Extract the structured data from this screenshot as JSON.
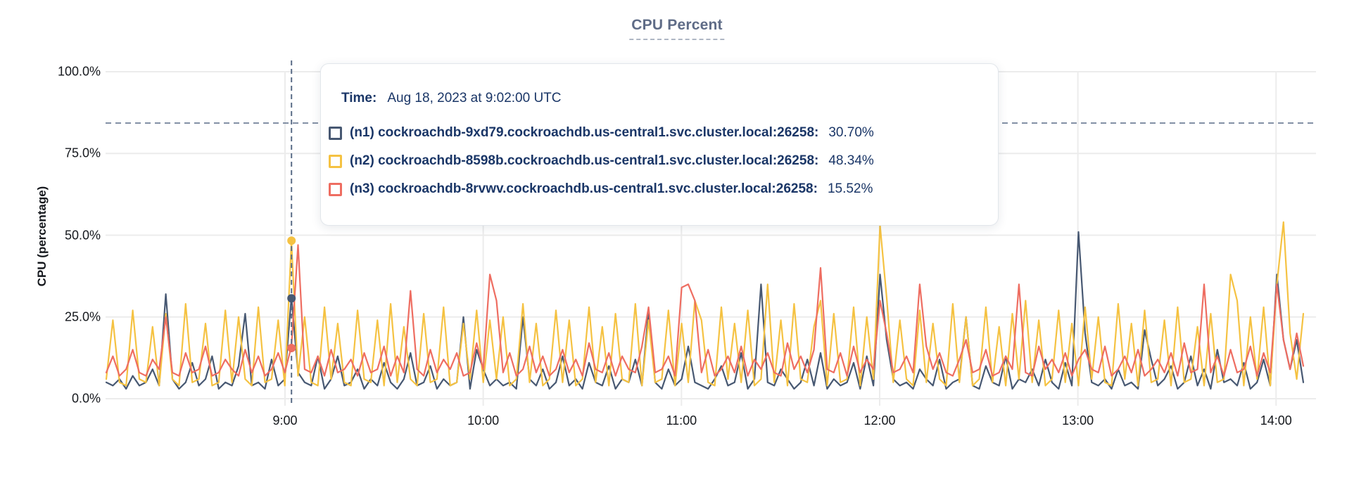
{
  "title": "CPU Percent",
  "tooltip": {
    "time_label": "Time:",
    "time_value": "Aug 18, 2023 at 9:02:00 UTC",
    "rows": [
      {
        "label": "(n1) cockroachdb-9xd79.cockroachdb.us-central1.svc.cluster.local:26258:",
        "value": "30.70%",
        "color": "#475872"
      },
      {
        "label": "(n2) cockroachdb-8598b.cockroachdb.us-central1.svc.cluster.local:26258:",
        "value": "48.34%",
        "color": "#F5C242"
      },
      {
        "label": "(n3) cockroachdb-8rvwv.cockroachdb.us-central1.svc.cluster.local:26258:",
        "value": "15.52%",
        "color": "#EE6D61"
      }
    ]
  },
  "chart_data": {
    "type": "line",
    "title": "CPU Percent",
    "xlabel": "",
    "ylabel": "CPU (percentage)",
    "ylim": [
      0,
      100
    ],
    "y_tick_values": [
      100,
      75,
      50,
      25,
      0
    ],
    "y_tick_labels": [
      "100.0%",
      "75.0%",
      "50.0%",
      "25.0%",
      "0.0%"
    ],
    "x_tick_labels": [
      "9:00",
      "10:00",
      "11:00",
      "12:00",
      "13:00",
      "14:00"
    ],
    "x_range": [
      "8:06",
      "14:08"
    ],
    "sample_interval_minutes": 2,
    "grid": true,
    "legend_position": "tooltip",
    "threshold_pct": 84.3,
    "hover": {
      "time": "Aug 18, 2023 at 9:02:00 UTC",
      "x_index": 28,
      "values": [
        30.7,
        48.34,
        15.52
      ]
    },
    "series": [
      {
        "name": "(n1) cockroachdb-9xd79.cockroachdb.us-central1.svc.cluster.local:26258",
        "color": "#475872",
        "values": [
          5,
          4,
          6,
          3,
          7,
          4,
          5,
          9,
          4,
          32,
          6,
          3,
          5,
          11,
          4,
          6,
          13,
          3,
          5,
          4,
          10,
          26,
          4,
          5,
          3,
          12,
          4,
          6,
          31,
          8,
          5,
          4,
          13,
          3,
          6,
          13,
          4,
          5,
          9,
          3,
          6,
          4,
          11,
          5,
          3,
          6,
          14,
          4,
          5,
          10,
          3,
          6,
          4,
          5,
          25,
          3,
          15,
          9,
          4,
          6,
          4,
          5,
          3,
          25,
          6,
          4,
          9,
          3,
          5,
          13,
          4,
          6,
          3,
          11,
          5,
          4,
          10,
          3,
          6,
          5,
          12,
          4,
          27,
          5,
          3,
          9,
          4,
          6,
          16,
          5,
          4,
          3,
          6,
          10,
          4,
          5,
          14,
          3,
          6,
          35,
          5,
          4,
          9,
          6,
          3,
          5,
          12,
          4,
          14,
          3,
          6,
          4,
          5,
          11,
          3,
          13,
          4,
          38,
          18,
          6,
          4,
          5,
          3,
          9,
          6,
          4,
          12,
          3,
          5,
          6,
          25,
          4,
          3,
          10,
          5,
          4,
          13,
          3,
          6,
          5,
          9,
          4,
          12,
          5,
          3,
          11,
          4,
          51,
          20,
          5,
          4,
          6,
          3,
          9,
          4,
          5,
          3,
          21,
          12,
          4,
          6,
          10,
          3,
          5,
          13,
          4,
          9,
          3,
          15,
          5,
          6,
          4,
          11,
          3,
          5,
          12,
          4,
          38,
          18,
          9,
          18,
          5
        ]
      },
      {
        "name": "(n2) cockroachdb-8598b.cockroachdb.us-central1.svc.cluster.local:26258",
        "color": "#F5C242",
        "values": [
          6,
          24,
          5,
          4,
          27,
          6,
          5,
          22,
          4,
          26,
          6,
          4,
          29,
          5,
          6,
          23,
          4,
          5,
          27,
          5,
          25,
          6,
          4,
          28,
          5,
          6,
          24,
          4,
          48,
          7,
          25,
          5,
          4,
          28,
          6,
          23,
          5,
          4,
          27,
          6,
          5,
          24,
          4,
          29,
          5,
          22,
          6,
          4,
          26,
          5,
          6,
          28,
          4,
          5,
          23,
          6,
          27,
          5,
          24,
          6,
          25,
          4,
          6,
          29,
          5,
          23,
          4,
          6,
          27,
          5,
          24,
          4,
          6,
          28,
          5,
          22,
          4,
          26,
          6,
          5,
          29,
          4,
          24,
          5,
          6,
          27,
          4,
          23,
          5,
          30,
          24,
          5,
          4,
          28,
          6,
          23,
          5,
          27,
          4,
          6,
          35,
          5,
          24,
          4,
          29,
          6,
          5,
          22,
          30,
          4,
          26,
          5,
          6,
          28,
          4,
          25,
          6,
          53,
          31,
          5,
          24,
          6,
          4,
          27,
          5,
          23,
          6,
          4,
          29,
          5,
          25,
          4,
          6,
          28,
          5,
          22,
          4,
          26,
          6,
          30,
          5,
          24,
          4,
          6,
          27,
          5,
          23,
          4,
          28,
          6,
          25,
          5,
          4,
          29,
          6,
          23,
          4,
          27,
          5,
          6,
          24,
          4,
          28,
          5,
          6,
          22,
          4,
          26,
          5,
          6,
          38,
          30,
          4,
          25,
          6,
          28,
          4,
          35,
          54,
          20,
          6,
          26
        ]
      },
      {
        "name": "(n3) cockroachdb-8rvwv.cockroachdb.us-central1.svc.cluster.local:26258",
        "color": "#EE6D61",
        "values": [
          8,
          13,
          7,
          9,
          15,
          8,
          7,
          12,
          9,
          25,
          8,
          7,
          14,
          8,
          9,
          16,
          7,
          8,
          12,
          9,
          7,
          15,
          8,
          13,
          7,
          9,
          14,
          8,
          16,
          47,
          9,
          8,
          13,
          7,
          15,
          8,
          9,
          12,
          7,
          14,
          8,
          9,
          16,
          7,
          13,
          8,
          33,
          9,
          7,
          15,
          8,
          12,
          9,
          14,
          7,
          8,
          17,
          9,
          38,
          30,
          8,
          14,
          7,
          9,
          16,
          8,
          13,
          7,
          9,
          15,
          8,
          12,
          7,
          17,
          9,
          8,
          14,
          7,
          13,
          9,
          8,
          16,
          28,
          8,
          9,
          13,
          7,
          34,
          35,
          30,
          8,
          15,
          7,
          9,
          13,
          8,
          16,
          7,
          12,
          9,
          14,
          8,
          7,
          17,
          9,
          13,
          8,
          15,
          40,
          9,
          8,
          14,
          7,
          16,
          8,
          12,
          9,
          30,
          20,
          8,
          9,
          13,
          8,
          35,
          16,
          9,
          14,
          8,
          7,
          12,
          18,
          8,
          9,
          15,
          7,
          8,
          13,
          9,
          35,
          8,
          7,
          16,
          9,
          12,
          8,
          14,
          7,
          12,
          15,
          9,
          8,
          16,
          7,
          9,
          13,
          8,
          15,
          7,
          9,
          12,
          8,
          14,
          7,
          17,
          8,
          9,
          35,
          8,
          13,
          7,
          15,
          8,
          9,
          16,
          7,
          14,
          8,
          35,
          18,
          9,
          20,
          10
        ]
      }
    ]
  },
  "colors": {
    "title": "#5F6C87",
    "axis_text": "#15181D",
    "tooltip_text": "#1A3667",
    "gridline": "#ECECEC",
    "crosshair": "#5A6C87",
    "background": "#FFFFFF"
  }
}
